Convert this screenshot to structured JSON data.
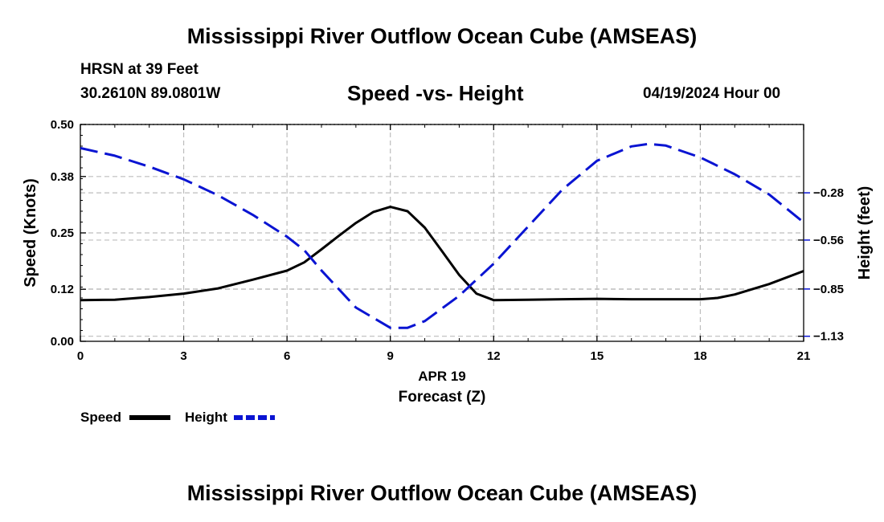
{
  "header": {
    "title": "Mississippi River Outflow Ocean Cube (AMSEAS)",
    "station": "HRSN at 39 Feet",
    "coords": "30.2610N  89.0801W",
    "plot_title": "Speed -vs- Height",
    "datetime": "04/19/2024 Hour 00"
  },
  "footer": {
    "title": "Mississippi River Outflow Ocean Cube (AMSEAS)"
  },
  "legend": {
    "speed_label": "Speed",
    "height_label": "Height"
  },
  "colors": {
    "speed": "#000000",
    "height": "#0a14d2",
    "grid": "#bdbdbd"
  },
  "chart_data": {
    "type": "line",
    "title": "Speed -vs- Height",
    "xlabel": "Forecast (Z)",
    "xlabel_date": "APR 19",
    "ylabel": "Speed (Knots)",
    "y2label": "Height (feet)",
    "xlim": [
      0,
      21
    ],
    "ylim": [
      0,
      0.5
    ],
    "y2lim": [
      -1.16,
      0.125
    ],
    "x_ticks": [
      0,
      3,
      6,
      9,
      12,
      15,
      18,
      21
    ],
    "y_ticks": [
      0.0,
      0.12,
      0.25,
      0.38,
      0.5
    ],
    "y_tick_labels": [
      "0.00",
      "0.12",
      "0.25",
      "0.38",
      "0.50"
    ],
    "y2_ticks": [
      -0.28,
      -0.56,
      -0.85,
      -1.13
    ],
    "y2_tick_labels": [
      "−0.28",
      "−0.56",
      "−0.85",
      "−1.13"
    ],
    "series": [
      {
        "name": "Speed",
        "axis": "left",
        "style": "solid",
        "x": [
          0,
          1,
          2,
          3,
          4,
          5,
          6,
          6.5,
          7,
          7.5,
          8,
          8.5,
          9,
          9.5,
          10,
          10.5,
          11,
          11.5,
          12,
          13,
          14,
          15,
          16,
          17,
          18,
          18.5,
          19,
          20,
          21
        ],
        "values": [
          0.095,
          0.096,
          0.102,
          0.11,
          0.122,
          0.142,
          0.163,
          0.182,
          0.212,
          0.243,
          0.273,
          0.298,
          0.31,
          0.3,
          0.262,
          0.208,
          0.153,
          0.11,
          0.095,
          0.096,
          0.097,
          0.098,
          0.097,
          0.097,
          0.097,
          0.1,
          0.108,
          0.132,
          0.162
        ]
      },
      {
        "name": "Height",
        "axis": "right",
        "style": "dashed",
        "x": [
          0,
          1,
          2,
          3,
          4,
          5,
          6,
          6.5,
          7,
          8,
          9,
          9.5,
          10,
          11,
          12,
          13,
          14,
          15,
          16,
          16.5,
          17,
          18,
          19,
          20,
          21
        ],
        "values": [
          -0.015,
          -0.06,
          -0.125,
          -0.2,
          -0.295,
          -0.41,
          -0.54,
          -0.62,
          -0.74,
          -0.96,
          -1.08,
          -1.08,
          -1.04,
          -0.89,
          -0.7,
          -0.48,
          -0.26,
          -0.09,
          -0.005,
          0.01,
          0.0,
          -0.07,
          -0.17,
          -0.29,
          -0.455
        ]
      }
    ]
  }
}
